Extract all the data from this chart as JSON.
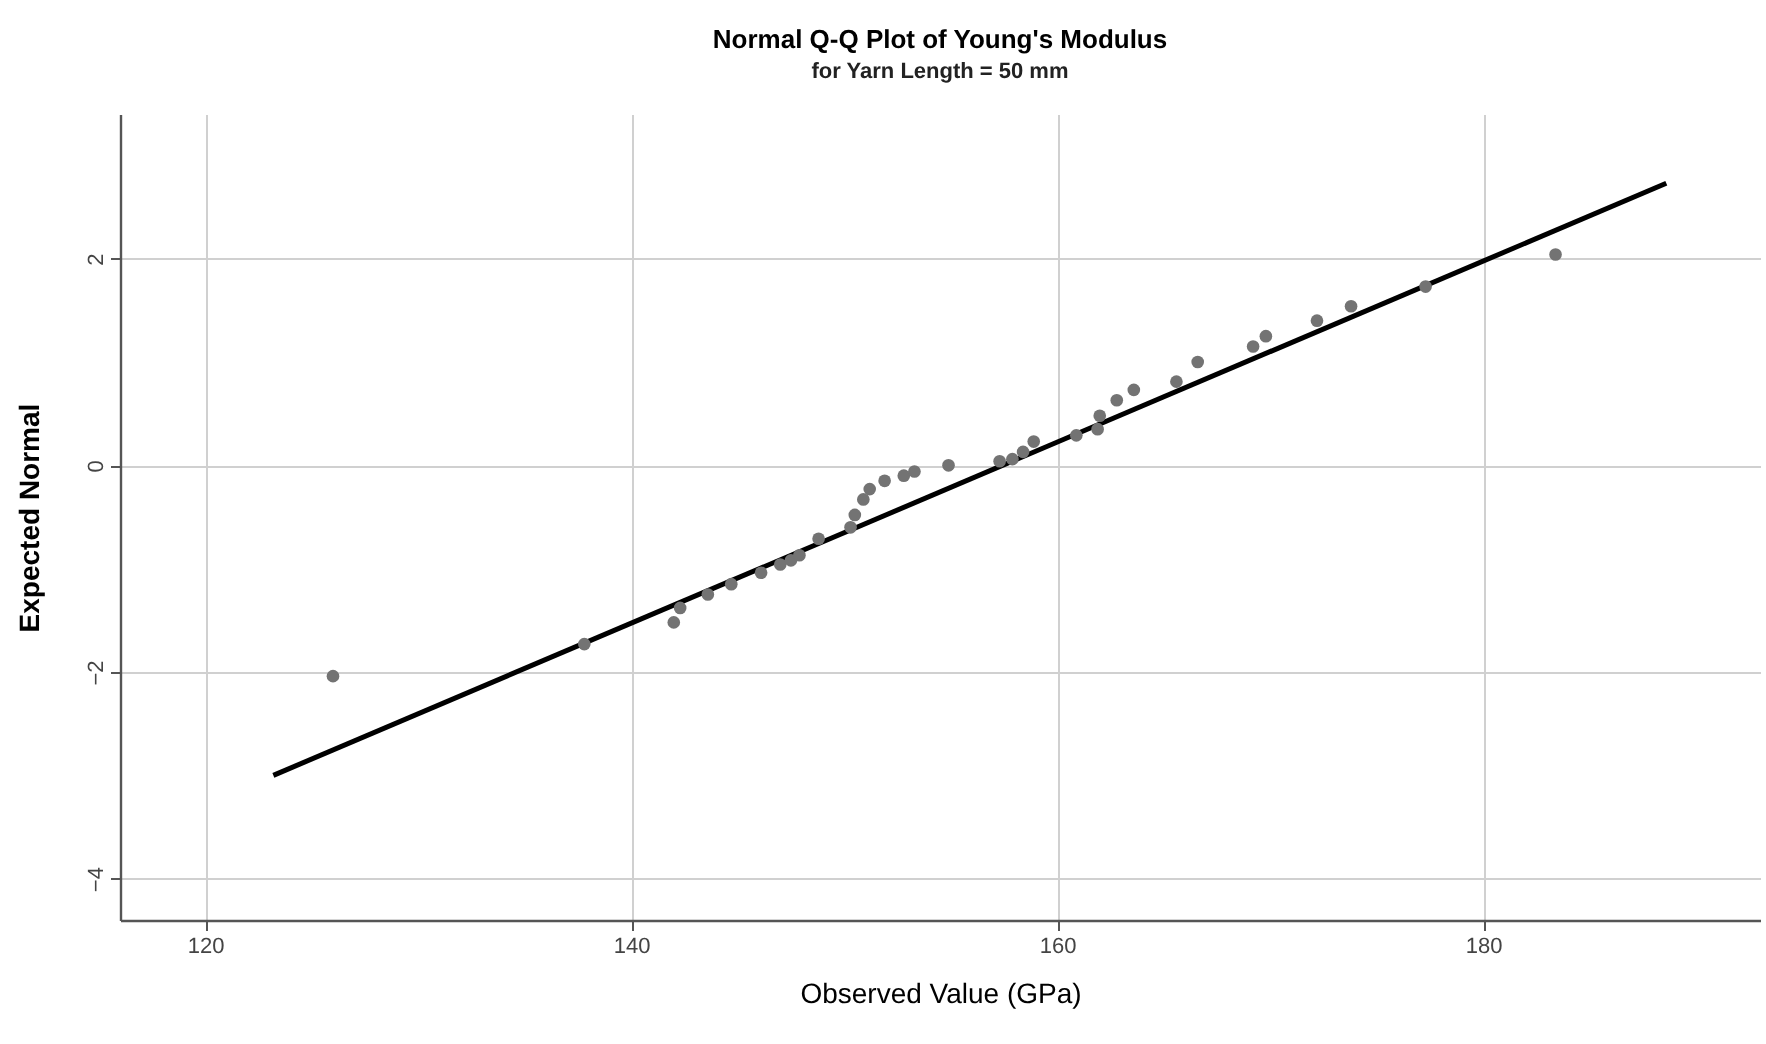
{
  "chart_data": {
    "type": "scatter",
    "title": "Normal Q-Q Plot of Young's Modulus",
    "subtitle": "for Yarn Length = 50 mm",
    "xlabel": "Observed Value (GPa)",
    "ylabel": "Expected Normal",
    "series": [
      {
        "marker": "circle",
        "color": "#737373",
        "x": [
          126.0,
          137.8,
          142.0,
          142.3,
          143.6,
          144.7,
          146.1,
          147.0,
          147.5,
          147.9,
          148.8,
          150.3,
          150.5,
          150.9,
          151.2,
          151.9,
          152.8,
          153.3,
          154.9,
          157.3,
          157.9,
          158.4,
          158.9,
          160.9,
          161.9,
          162.0,
          162.8,
          163.6,
          165.6,
          166.6,
          169.2,
          169.8,
          172.2,
          173.8,
          177.3,
          183.4
        ],
        "values": [
          -2.04,
          -1.73,
          -1.52,
          -1.38,
          -1.25,
          -1.15,
          -1.04,
          -0.96,
          -0.92,
          -0.87,
          -0.71,
          -0.6,
          -0.48,
          -0.33,
          -0.23,
          -0.15,
          -0.1,
          -0.06,
          0.0,
          0.04,
          0.06,
          0.13,
          0.23,
          0.29,
          0.35,
          0.48,
          0.63,
          0.73,
          0.81,
          1.0,
          1.15,
          1.25,
          1.4,
          1.54,
          1.73,
          2.04
        ]
      },
      {
        "type": "line",
        "color": "#000000",
        "x": [
          123.2,
          188.6
        ],
        "values": [
          -3.0,
          2.73
        ]
      }
    ],
    "xlim": [
      116,
      193
    ],
    "ylim": [
      -4.4,
      3.4
    ],
    "xticks": [
      120,
      140,
      160,
      180
    ],
    "yticks": [
      -4,
      -2,
      0,
      2
    ],
    "grid": true
  }
}
